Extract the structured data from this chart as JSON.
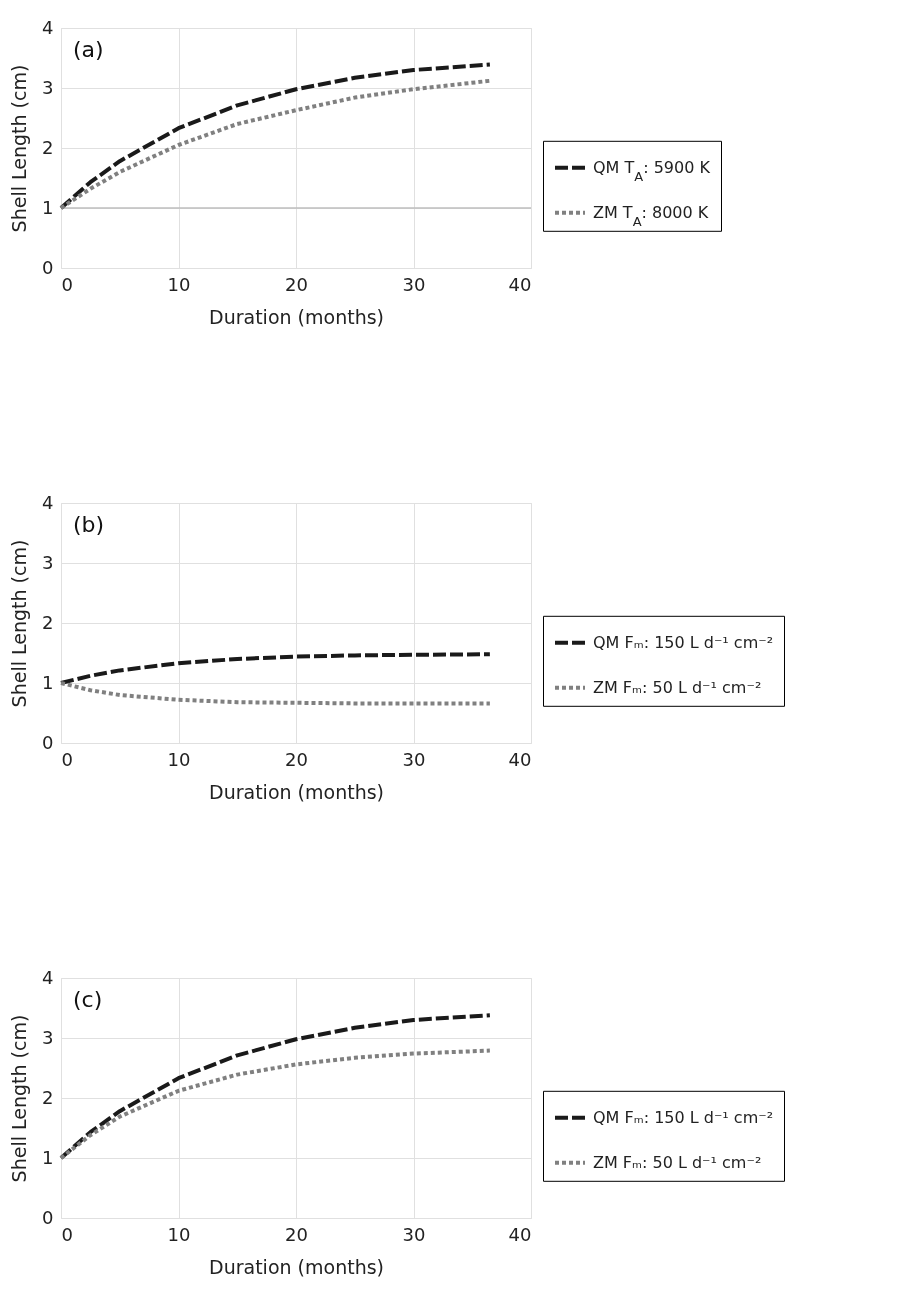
{
  "chart_data": [
    {
      "type": "line",
      "xlabel": "Duration (months)",
      "ylabel": "Shell Length (cm)",
      "annotations": [
        "(a)"
      ],
      "xlim": [
        0,
        40
      ],
      "xticks": [
        0,
        10,
        20,
        30,
        40
      ],
      "ylim": [
        0,
        4
      ],
      "yticks": [
        0,
        1,
        2,
        3,
        4
      ],
      "grid": true,
      "legend": "right",
      "ref_lines": [
        {
          "axis": "y",
          "value": 1,
          "color": "#bfbfbf"
        }
      ],
      "series": [
        {
          "name": "QM T$_{A}$: 5900 K",
          "color": "#1a1a1a",
          "line_style": "dashed",
          "x": [
            0,
            2.5,
            5,
            10,
            15,
            20,
            25,
            30,
            36.5
          ],
          "values": [
            1,
            1.43,
            1.78,
            2.33,
            2.71,
            2.98,
            3.17,
            3.3,
            3.39
          ]
        },
        {
          "name": "ZM T$_{A}$: 8000 K",
          "color": "#808080",
          "line_style": "dotted",
          "x": [
            0,
            2.5,
            5,
            10,
            15,
            20,
            25,
            30,
            36.5
          ],
          "values": [
            1,
            1.32,
            1.6,
            2.05,
            2.4,
            2.63,
            2.84,
            2.98,
            3.12
          ]
        }
      ]
    },
    {
      "type": "line",
      "xlabel": "Duration (months)",
      "ylabel": "Shell Length (cm)",
      "annotations": [
        "(b)"
      ],
      "xlim": [
        0,
        40
      ],
      "xticks": [
        0,
        10,
        20,
        30,
        40
      ],
      "ylim": [
        0,
        4
      ],
      "yticks": [
        0,
        1,
        2,
        3,
        4
      ],
      "grid": true,
      "legend": "right",
      "series": [
        {
          "name": "QM Fₘ: 150 L d⁻¹ cm⁻²",
          "color": "#1a1a1a",
          "line_style": "dashed",
          "x": [
            0,
            2.5,
            5,
            10,
            15,
            20,
            25,
            30,
            36.5
          ],
          "values": [
            1,
            1.12,
            1.21,
            1.33,
            1.4,
            1.44,
            1.46,
            1.47,
            1.48
          ]
        },
        {
          "name": "ZM Fₘ: 50 L d⁻¹ cm⁻²",
          "color": "#808080",
          "line_style": "dotted",
          "x": [
            0,
            2.5,
            5,
            10,
            15,
            20,
            25,
            30,
            36.5
          ],
          "values": [
            1,
            0.88,
            0.8,
            0.72,
            0.68,
            0.67,
            0.66,
            0.66,
            0.66
          ]
        }
      ]
    },
    {
      "type": "line",
      "xlabel": "Duration (months)",
      "ylabel": "Shell Length (cm)",
      "annotations": [
        "(c)"
      ],
      "xlim": [
        0,
        40
      ],
      "xticks": [
        0,
        10,
        20,
        30,
        40
      ],
      "ylim": [
        0,
        4
      ],
      "yticks": [
        0,
        1,
        2,
        3,
        4
      ],
      "grid": true,
      "legend": "right",
      "series": [
        {
          "name": "QM Fₘ: 150 L d⁻¹ cm⁻²",
          "color": "#1a1a1a",
          "line_style": "dashed",
          "x": [
            0,
            2.5,
            5,
            10,
            15,
            20,
            25,
            30,
            36.5
          ],
          "values": [
            1,
            1.43,
            1.78,
            2.33,
            2.71,
            2.98,
            3.17,
            3.3,
            3.38
          ]
        },
        {
          "name": "ZM Fₘ: 50 L d⁻¹ cm⁻²",
          "color": "#808080",
          "line_style": "dotted",
          "x": [
            0,
            2.5,
            5,
            10,
            15,
            20,
            25,
            30,
            36.5
          ],
          "values": [
            1,
            1.38,
            1.69,
            2.12,
            2.39,
            2.56,
            2.67,
            2.74,
            2.79
          ]
        }
      ]
    }
  ]
}
